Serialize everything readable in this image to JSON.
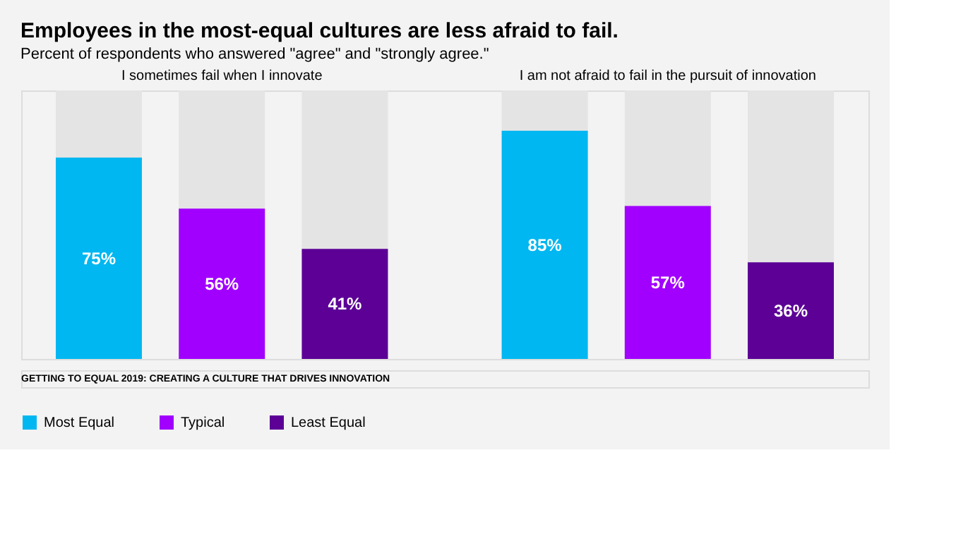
{
  "chart_data": {
    "type": "bar",
    "title": "Employees in the most-equal cultures are less afraid to fail.",
    "subtitle": "Percent of respondents who answered \"agree\" and \"strongly agree.\"",
    "categories": [
      "I sometimes fail when I innovate",
      "I am not afraid to fail in the pursuit of innovation"
    ],
    "ylim": [
      0,
      100
    ],
    "tick_labels": "x",
    "legend": "bottom",
    "annotations": [
      "GETTING TO EQUAL 2019: CREATING A CULTURE THAT DRIVES INNOVATION"
    ],
    "series": [
      {
        "name": "Most Equal",
        "color": "#00b7f1",
        "values": [
          75,
          85
        ],
        "value_labels": [
          "75%",
          "85%"
        ]
      },
      {
        "name": "Typical",
        "color": "#a100ff",
        "values": [
          56,
          57
        ],
        "value_labels": [
          "56%",
          "57%"
        ]
      },
      {
        "name": "Least Equal",
        "color": "#5c0096",
        "values": [
          41,
          36
        ],
        "value_labels": [
          "41%",
          "36%"
        ]
      }
    ]
  }
}
